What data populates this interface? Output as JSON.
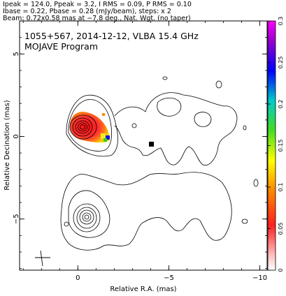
{
  "header": {
    "line1": "Ipeak = 124.0, Ppeak = 3.2, I RMS = 0.09, P RMS = 0.10",
    "line2": "Ibase = 0.22, Pbase = 0.28 (mJy/beam), steps: x 2",
    "line3": "Beam: 0.72x0.58 mas at −7.8 deg., Nat. Wgt. (no taper)"
  },
  "plot": {
    "source_label": "1055+567, 2014-12-12, VLBA 15.4 GHz",
    "program_label": "MOJAVE Program"
  },
  "chart_data": {
    "type": "contour",
    "xlabel": "Relative R.A. (mas)",
    "ylabel": "Relative Decination (mas)",
    "xlim": [
      3.2,
      -10.4
    ],
    "ylim": [
      -8.1,
      7.0
    ],
    "x_ticks": [
      {
        "v": 0,
        "label": "0"
      },
      {
        "v": -5,
        "label": "−5"
      },
      {
        "v": -10,
        "label": "−10"
      }
    ],
    "y_ticks": [
      {
        "v": 5,
        "label": "5"
      },
      {
        "v": 0,
        "label": "0"
      },
      {
        "v": -5,
        "label": "−5"
      }
    ],
    "colorbar": {
      "min": 0,
      "max": 0.3,
      "ticks": [
        {
          "v": 0,
          "label": "0"
        },
        {
          "v": 0.05,
          "label": "0.05"
        },
        {
          "v": 0.1,
          "label": "0.1"
        },
        {
          "v": 0.15,
          "label": "0.15"
        },
        {
          "v": 0.2,
          "label": "0.2"
        },
        {
          "v": 0.25,
          "label": "0.25"
        },
        {
          "v": 0.3,
          "label": "0.3"
        }
      ]
    },
    "beam": {
      "major_mas": 0.72,
      "minor_mas": 0.58,
      "pa_deg": -7.8
    }
  }
}
